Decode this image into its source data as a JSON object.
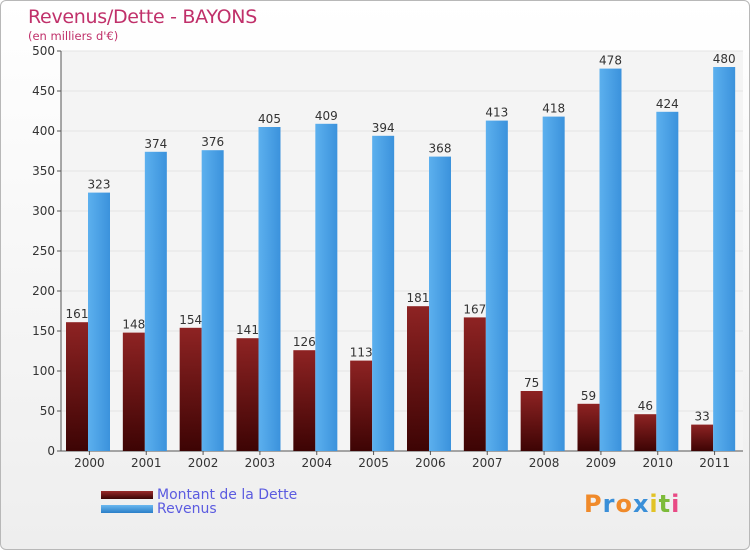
{
  "title": "Revenus/Dette - BAYONS",
  "subtitle": "(en milliers d'€)",
  "legend": {
    "debt_label": "Montant de la Dette",
    "revenue_label": "Revenus"
  },
  "logo": {
    "letters": [
      "P",
      "r",
      "o",
      "x",
      "i",
      "t",
      "i"
    ],
    "colors": [
      "#f08a2a",
      "#3a8fd8",
      "#f08a2a",
      "#3a8fd8",
      "#e2c326",
      "#7dbb3a",
      "#e84a85"
    ]
  },
  "colors": {
    "debt": "#6e1010",
    "revenue": "#4ea6e8",
    "title": "#c0306a",
    "grid": "#e5e5e5"
  },
  "chart_data": {
    "type": "bar",
    "title": "Revenus/Dette - BAYONS",
    "ylabel": "(en milliers d'€)",
    "xlabel": "",
    "ylim": [
      0,
      500
    ],
    "yticks": [
      0,
      50,
      100,
      150,
      200,
      250,
      300,
      350,
      400,
      450,
      500
    ],
    "categories": [
      "2000",
      "2001",
      "2002",
      "2003",
      "2004",
      "2005",
      "2006",
      "2007",
      "2008",
      "2009",
      "2010",
      "2011"
    ],
    "series": [
      {
        "name": "Montant de la Dette",
        "values": [
          161,
          148,
          154,
          141,
          126,
          113,
          181,
          167,
          75,
          59,
          46,
          33
        ]
      },
      {
        "name": "Revenus",
        "values": [
          323,
          374,
          376,
          405,
          409,
          394,
          368,
          413,
          418,
          478,
          424,
          480
        ]
      }
    ],
    "legend": "bottom-left",
    "grid": true
  }
}
